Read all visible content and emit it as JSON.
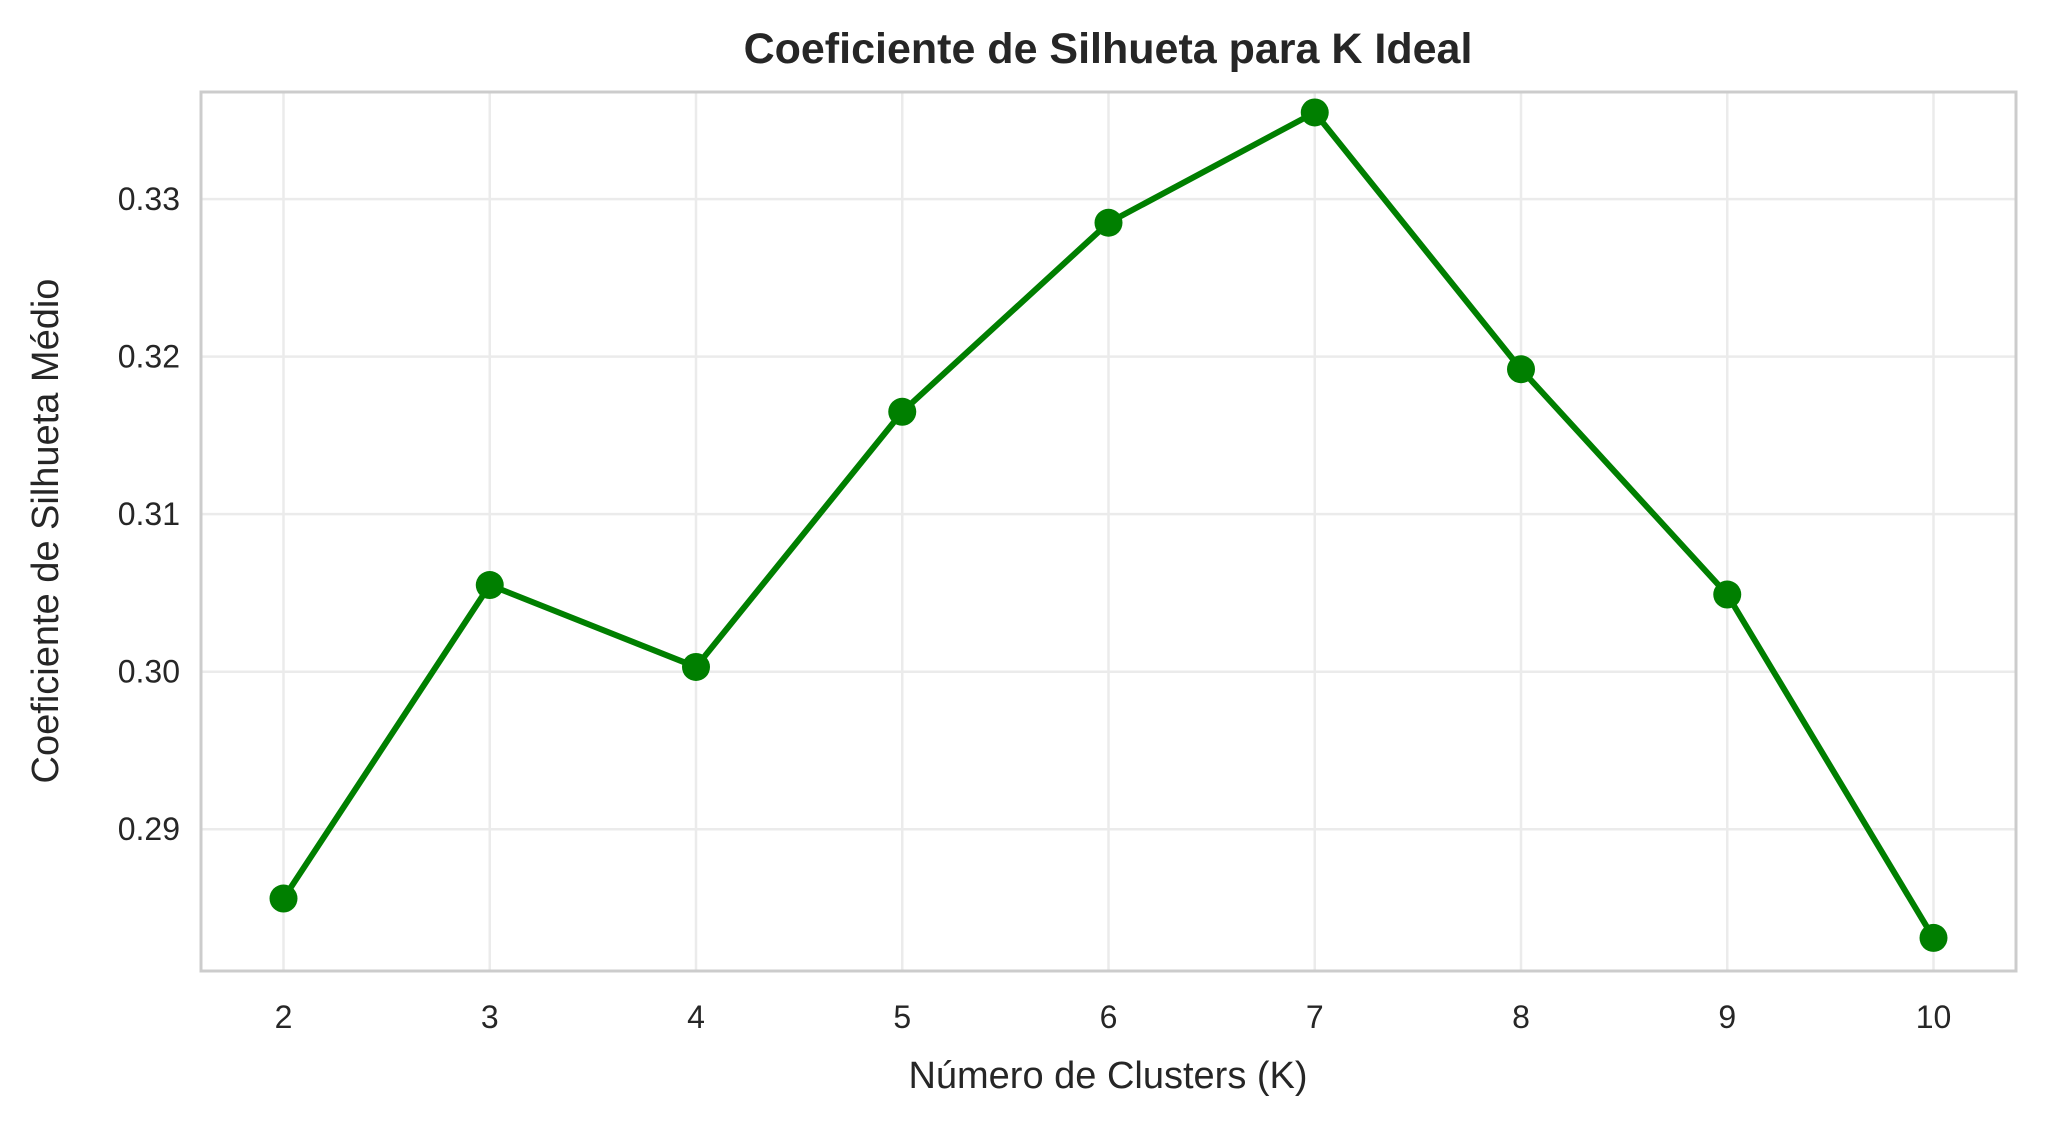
{
  "chart_data": {
    "type": "line",
    "title": "Coeficiente de Silhueta para K Ideal",
    "xlabel": "Número de Clusters (K)",
    "ylabel": "Coeficiente de Silhueta Médio",
    "x": [
      2,
      3,
      4,
      5,
      6,
      7,
      8,
      9,
      10
    ],
    "x_ticks": [
      "2",
      "3",
      "4",
      "5",
      "6",
      "7",
      "8",
      "9",
      "10"
    ],
    "y_ticks": [
      "0.29",
      "0.30",
      "0.31",
      "0.32",
      "0.33"
    ],
    "y_tick_values": [
      0.29,
      0.3,
      0.31,
      0.32,
      0.33
    ],
    "series": [
      {
        "values": [
          0.2856,
          0.3055,
          0.3003,
          0.3165,
          0.3285,
          0.3355,
          0.3192,
          0.3049,
          0.2831
        ],
        "color": "#007f00",
        "marker": "circle"
      }
    ],
    "xlim": [
      1.6,
      10.4
    ],
    "ylim": [
      0.281,
      0.3368
    ],
    "grid": true,
    "legend": "none"
  }
}
